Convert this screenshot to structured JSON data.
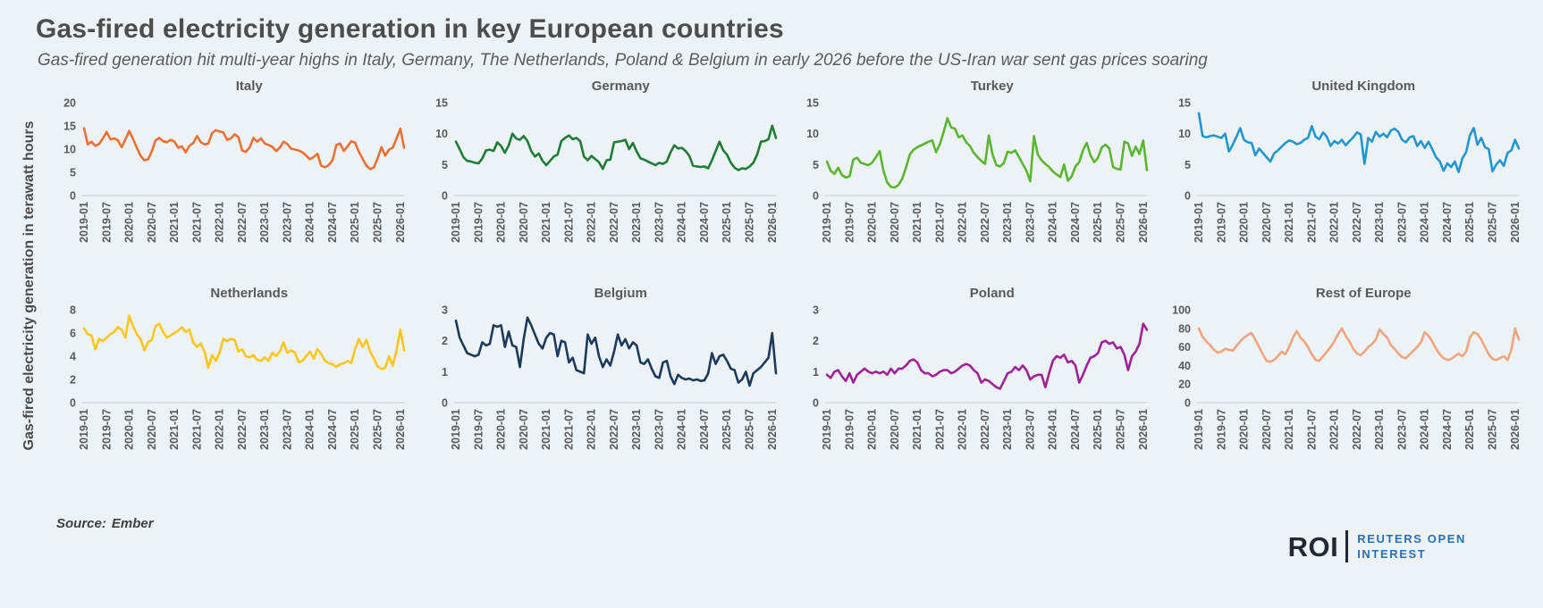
{
  "page": {
    "title": "Gas-fired electricity generation in key European countries",
    "subtitle": "Gas-fired generation hit multi-year highs in Italy, Germany, The Netherlands, Poland & Belgium in early 2026 before the US-Iran war sent gas prices soaring",
    "y_axis_label": "Gas-fired electricity generation in terawatt hours",
    "source_label": "Source:",
    "source_value": "Ember",
    "logo": {
      "abbr": "ROI",
      "line1": "REUTERS OPEN",
      "line2": "INTEREST"
    }
  },
  "colors": {
    "background": "#edf2f6",
    "title_text": "#4d4d4d",
    "axis_text": "#595959",
    "axis_line": "#c6ccd4",
    "logo_dark": "#1f2a36",
    "logo_blue": "#2a6fb8"
  },
  "chart_data": {
    "type": "line",
    "layout": "small-multiples 2x4",
    "unit": "terawatt hours",
    "frequency": "monthly",
    "x_start": "2019-01",
    "x_end": "2026-02",
    "grid": "off",
    "x_tick_labels": [
      "2019-01",
      "2019-07",
      "2020-01",
      "2020-07",
      "2021-01",
      "2021-07",
      "2022-01",
      "2022-07",
      "2023-01",
      "2023-07",
      "2024-01",
      "2024-07",
      "2025-01",
      "2025-07",
      "2026-01"
    ],
    "panels": [
      {
        "title": "Italy",
        "color": "#ed7031",
        "ymax": 20,
        "yticks": [
          0,
          5,
          10,
          15,
          20
        ],
        "values": [
          14.5,
          11.0,
          11.6,
          10.7,
          11.1,
          12.3,
          13.7,
          12.1,
          12.3,
          11.9,
          10.4,
          12.1,
          13.9,
          12.2,
          10.3,
          8.6,
          7.6,
          7.8,
          9.5,
          11.9,
          12.4,
          11.7,
          11.5,
          12.0,
          11.6,
          10.3,
          10.6,
          9.3,
          10.7,
          11.3,
          12.8,
          11.5,
          11.0,
          11.2,
          13.4,
          14.1,
          13.8,
          13.6,
          12.0,
          12.3,
          13.2,
          12.6,
          9.7,
          9.4,
          10.4,
          12.4,
          11.6,
          12.3,
          11.2,
          10.9,
          10.5,
          9.6,
          10.3,
          11.6,
          11.1,
          10.1,
          9.9,
          9.7,
          9.3,
          8.6,
          7.8,
          8.3,
          9.0,
          6.4,
          6.1,
          6.6,
          7.6,
          10.9,
          11.2,
          9.6,
          10.6,
          11.7,
          11.4,
          9.4,
          7.9,
          6.4,
          5.7,
          6.1,
          8.1,
          10.4,
          8.6,
          9.9,
          10.3,
          12.3,
          14.4,
          10.3
        ]
      },
      {
        "title": "Germany",
        "color": "#1e7d34",
        "ymax": 15,
        "yticks": [
          0,
          5,
          10,
          15
        ],
        "values": [
          8.7,
          7.5,
          6.2,
          5.6,
          5.5,
          5.3,
          5.2,
          6.0,
          7.3,
          7.4,
          7.2,
          8.6,
          8.0,
          6.9,
          8.1,
          10.0,
          9.2,
          9.0,
          9.6,
          8.8,
          7.2,
          6.3,
          6.8,
          5.6,
          4.9,
          5.6,
          6.3,
          6.6,
          8.8,
          9.3,
          9.7,
          9.1,
          9.3,
          8.8,
          6.3,
          5.7,
          6.4,
          5.9,
          5.4,
          4.3,
          5.7,
          5.8,
          8.6,
          8.7,
          8.8,
          9.0,
          7.5,
          8.5,
          7.1,
          6.0,
          5.8,
          5.5,
          5.2,
          4.9,
          5.3,
          5.1,
          5.5,
          7.0,
          8.1,
          7.6,
          7.7,
          7.2,
          6.4,
          4.8,
          4.7,
          4.6,
          4.7,
          4.4,
          5.7,
          7.2,
          8.7,
          7.3,
          6.6,
          5.3,
          4.5,
          4.1,
          4.4,
          4.3,
          4.7,
          5.3,
          6.6,
          8.7,
          8.8,
          9.1,
          11.3,
          9.3
        ]
      },
      {
        "title": "Turkey",
        "color": "#5ab62f",
        "ymax": 15,
        "yticks": [
          0,
          5,
          10,
          15
        ],
        "values": [
          5.5,
          4.0,
          3.5,
          4.5,
          3.3,
          2.9,
          3.1,
          5.8,
          6.1,
          5.3,
          5.1,
          4.9,
          5.3,
          6.2,
          7.2,
          4.0,
          2.1,
          1.4,
          1.3,
          1.7,
          2.7,
          4.5,
          6.6,
          7.4,
          7.8,
          8.1,
          8.4,
          8.7,
          8.9,
          7.0,
          8.3,
          10.3,
          12.5,
          11.0,
          10.8,
          9.4,
          9.7,
          8.6,
          8.0,
          6.9,
          6.2,
          5.6,
          5.1,
          9.7,
          6.6,
          4.9,
          4.7,
          5.3,
          7.1,
          6.9,
          7.3,
          6.2,
          5.1,
          4.0,
          2.3,
          9.6,
          6.6,
          5.7,
          5.1,
          4.6,
          3.9,
          3.4,
          3.0,
          5.0,
          2.4,
          3.1,
          4.7,
          5.4,
          7.3,
          8.5,
          6.5,
          5.4,
          6.1,
          7.8,
          8.2,
          7.6,
          4.6,
          4.3,
          4.2,
          8.7,
          8.4,
          6.4,
          7.9,
          6.7,
          8.9,
          4.1
        ]
      },
      {
        "title": "United Kingdom",
        "color": "#2097d4",
        "ymax": 15,
        "yticks": [
          0,
          5,
          10,
          15
        ],
        "values": [
          13.3,
          9.6,
          9.4,
          9.6,
          9.7,
          9.5,
          9.3,
          10.0,
          7.1,
          8.2,
          9.5,
          10.9,
          9.0,
          8.6,
          8.5,
          6.5,
          7.6,
          6.9,
          6.2,
          5.5,
          6.8,
          7.3,
          7.9,
          8.5,
          8.9,
          8.7,
          8.3,
          8.5,
          9.0,
          9.3,
          11.2,
          9.5,
          9.1,
          10.2,
          9.5,
          8.0,
          8.8,
          8.4,
          9.0,
          8.1,
          8.8,
          9.4,
          10.2,
          9.9,
          5.1,
          9.3,
          8.7,
          10.3,
          9.5,
          10.0,
          9.4,
          10.5,
          10.8,
          10.3,
          9.0,
          8.6,
          9.4,
          9.6,
          8.0,
          8.8,
          7.7,
          8.7,
          7.5,
          6.2,
          5.5,
          4.0,
          5.2,
          4.6,
          5.5,
          3.8,
          6.0,
          7.0,
          9.7,
          10.9,
          8.2,
          9.3,
          7.8,
          7.5,
          3.9,
          5.0,
          5.7,
          4.8,
          6.9,
          7.3,
          9.0,
          7.6
        ]
      },
      {
        "title": "Netherlands",
        "color": "#fec51b",
        "ymax": 8,
        "yticks": [
          0,
          2,
          4,
          6,
          8
        ],
        "values": [
          6.4,
          5.9,
          5.8,
          4.6,
          5.5,
          5.3,
          5.6,
          5.9,
          6.1,
          6.5,
          6.3,
          5.6,
          7.5,
          6.6,
          5.9,
          5.5,
          4.5,
          5.2,
          5.4,
          6.6,
          6.8,
          6.1,
          5.6,
          5.8,
          6.0,
          6.2,
          6.5,
          6.1,
          6.3,
          5.2,
          4.8,
          5.1,
          4.4,
          3.0,
          4.1,
          3.6,
          4.3,
          5.5,
          5.3,
          5.5,
          5.4,
          4.4,
          4.6,
          4.0,
          3.9,
          4.1,
          3.7,
          3.6,
          3.9,
          3.6,
          4.3,
          4.0,
          4.4,
          5.2,
          4.3,
          4.5,
          4.3,
          3.5,
          3.6,
          4.0,
          4.4,
          3.8,
          4.6,
          4.2,
          3.6,
          3.4,
          3.3,
          3.1,
          3.3,
          3.4,
          3.6,
          3.4,
          4.6,
          5.5,
          4.8,
          5.4,
          4.4,
          3.8,
          3.1,
          2.9,
          3.0,
          4.0,
          3.2,
          4.5,
          6.3,
          4.5
        ]
      },
      {
        "title": "Belgium",
        "color": "#1c3a5e",
        "ymax": 3,
        "yticks": [
          0,
          1,
          2,
          3
        ],
        "values": [
          2.65,
          2.1,
          1.85,
          1.6,
          1.55,
          1.5,
          1.55,
          1.95,
          1.85,
          1.9,
          2.5,
          2.45,
          2.5,
          1.8,
          2.3,
          1.85,
          1.8,
          1.15,
          2.05,
          2.75,
          2.5,
          2.2,
          1.9,
          1.75,
          2.1,
          2.25,
          2.2,
          1.5,
          2.0,
          1.95,
          1.3,
          1.45,
          1.05,
          1.0,
          0.95,
          2.2,
          1.9,
          2.1,
          1.5,
          1.15,
          1.4,
          1.2,
          1.65,
          2.2,
          1.85,
          2.05,
          1.75,
          1.95,
          1.85,
          1.3,
          1.25,
          1.4,
          1.1,
          0.85,
          0.8,
          1.3,
          1.35,
          0.85,
          0.6,
          0.9,
          0.8,
          0.75,
          0.78,
          0.72,
          0.75,
          0.7,
          0.72,
          0.95,
          1.6,
          1.25,
          1.5,
          1.55,
          1.35,
          1.1,
          1.05,
          0.65,
          0.75,
          1.0,
          0.55,
          0.95,
          1.05,
          1.15,
          1.3,
          1.45,
          2.25,
          0.95
        ]
      },
      {
        "title": "Poland",
        "color": "#a0219b",
        "ymax": 3,
        "yticks": [
          0,
          1,
          2,
          3
        ],
        "values": [
          0.9,
          0.8,
          1.0,
          1.05,
          0.85,
          0.7,
          0.95,
          0.65,
          0.9,
          1.0,
          1.1,
          1.0,
          0.95,
          1.0,
          0.95,
          1.0,
          0.9,
          1.1,
          0.95,
          1.1,
          1.1,
          1.2,
          1.35,
          1.4,
          1.3,
          1.05,
          0.95,
          0.95,
          0.85,
          0.9,
          1.0,
          1.05,
          1.05,
          0.95,
          1.0,
          1.1,
          1.2,
          1.25,
          1.2,
          1.05,
          0.95,
          0.65,
          0.75,
          0.7,
          0.6,
          0.5,
          0.45,
          0.7,
          0.95,
          1.0,
          1.15,
          1.05,
          1.2,
          1.05,
          0.75,
          0.85,
          0.9,
          0.9,
          0.5,
          0.95,
          1.35,
          1.5,
          1.45,
          1.55,
          1.3,
          1.35,
          1.2,
          0.65,
          0.9,
          1.2,
          1.45,
          1.5,
          1.6,
          1.95,
          2.0,
          1.9,
          1.95,
          1.75,
          1.8,
          1.55,
          1.05,
          1.5,
          1.65,
          1.9,
          2.55,
          2.35
        ]
      },
      {
        "title": "Rest of Europe",
        "color": "#f2a47c",
        "ymax": 100,
        "yticks": [
          0,
          20,
          40,
          60,
          80,
          100
        ],
        "values": [
          80,
          71,
          66,
          62,
          57,
          54,
          55,
          58,
          57,
          56,
          61,
          66,
          70,
          73,
          75,
          68,
          60,
          52,
          45,
          44,
          46,
          50,
          55,
          52,
          60,
          70,
          77,
          70,
          66,
          60,
          52,
          46,
          45,
          50,
          55,
          60,
          66,
          74,
          80,
          72,
          66,
          58,
          53,
          51,
          55,
          60,
          63,
          68,
          79,
          74,
          70,
          62,
          58,
          53,
          49,
          48,
          52,
          56,
          60,
          65,
          76,
          72,
          66,
          58,
          52,
          48,
          46,
          47,
          50,
          53,
          50,
          55,
          70,
          76,
          74,
          68,
          60,
          52,
          47,
          46,
          48,
          50,
          46,
          57,
          80,
          68
        ]
      }
    ]
  }
}
